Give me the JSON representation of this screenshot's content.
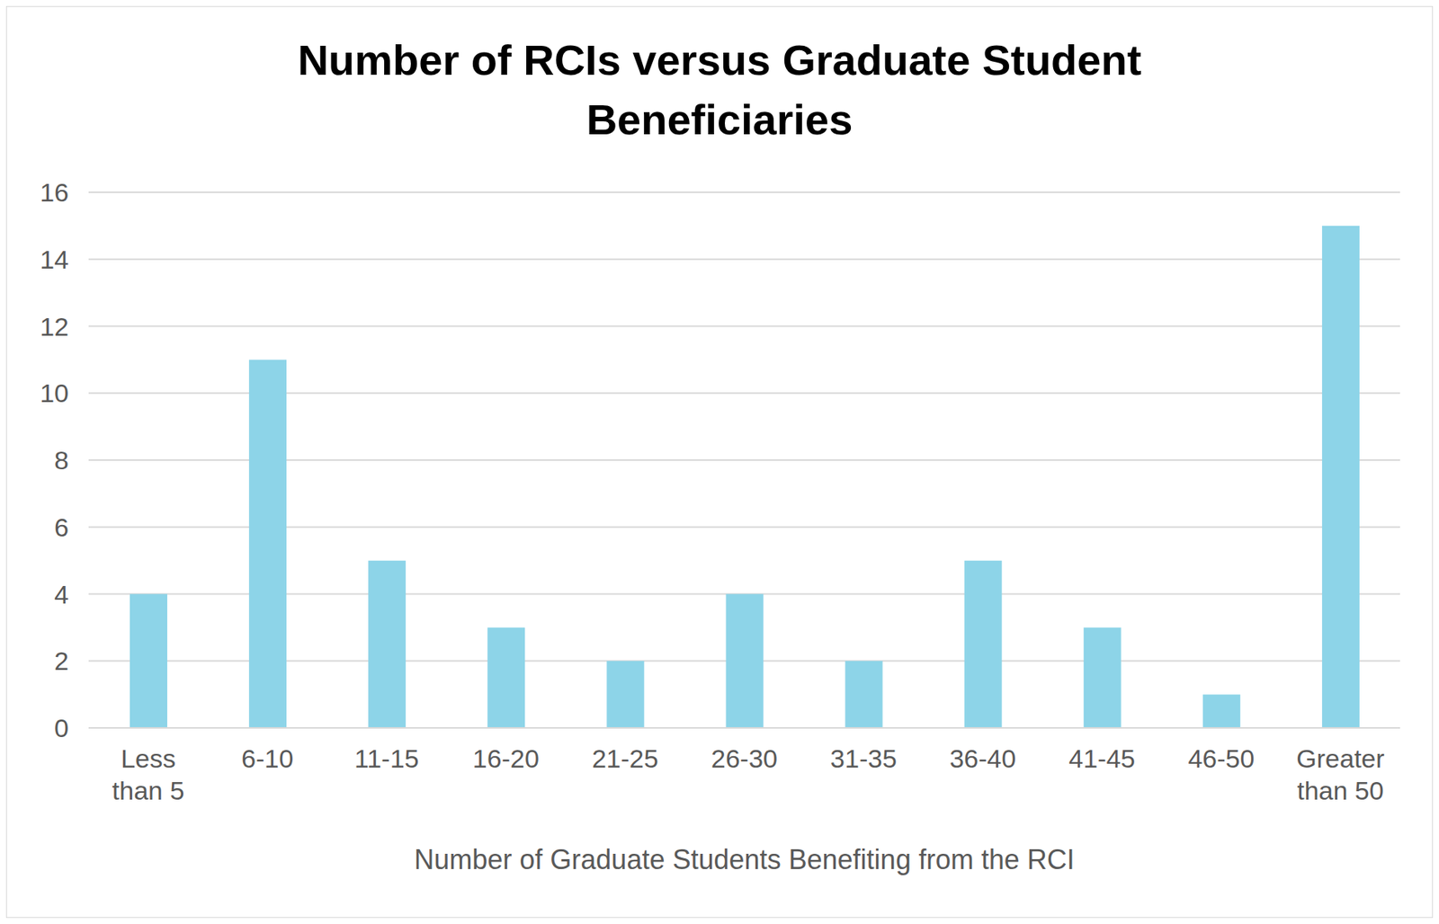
{
  "chart_data": {
    "type": "bar",
    "title": "Number of RCIs versus Graduate Student Beneficiaries",
    "x_label": "Number of Graduate Students Benefiting from the RCI",
    "categories": [
      "Less than 5",
      "6-10",
      "11-15",
      "16-20",
      "21-25",
      "26-30",
      "31-35",
      "36-40",
      "41-45",
      "46-50",
      "Greater than 50"
    ],
    "values": [
      4,
      11,
      5,
      3,
      2,
      4,
      2,
      5,
      3,
      1,
      15
    ],
    "color": "#8dd4e8",
    "ylim": [
      0,
      16
    ],
    "yticks": [
      0,
      2,
      4,
      6,
      8,
      10,
      12,
      14,
      16
    ],
    "grid": true
  }
}
